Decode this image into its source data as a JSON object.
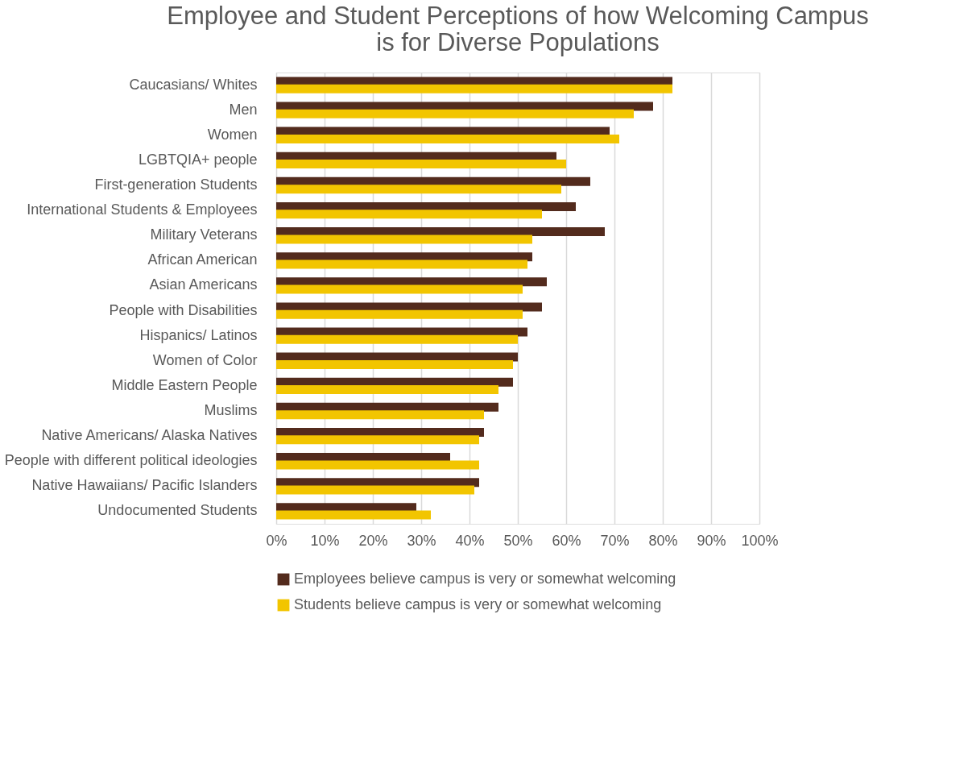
{
  "chart_data": {
    "type": "bar",
    "orientation": "horizontal",
    "title": [
      "Employee and Student Perceptions of how Welcoming Campus",
      "is for Diverse Populations"
    ],
    "categories": [
      "Caucasians/ Whites",
      "Men",
      "Women",
      "LGBTQIA+ people",
      "First-generation Students",
      "International Students & Employees",
      "Military Veterans",
      "African American",
      "Asian Americans",
      "People with Disabilities",
      "Hispanics/ Latinos",
      "Women of Color",
      "Middle Eastern People",
      "Muslims",
      "Native Americans/ Alaska Natives",
      "People with different political ideologies",
      "Native Hawaiians/ Pacific Islanders",
      "Undocumented Students"
    ],
    "series": [
      {
        "name": "Employees believe campus is very or somewhat welcoming",
        "color": "#532b1d",
        "values": [
          82,
          78,
          69,
          58,
          65,
          62,
          68,
          53,
          56,
          55,
          52,
          50,
          49,
          46,
          43,
          36,
          42,
          29
        ]
      },
      {
        "name": "Students believe campus is very or somewhat welcoming",
        "color": "#f2c500",
        "values": [
          82,
          74,
          71,
          60,
          59,
          55,
          53,
          52,
          51,
          51,
          50,
          49,
          46,
          43,
          42,
          42,
          41,
          32
        ]
      }
    ],
    "xlim": [
      0,
      100
    ],
    "xticks": [
      {
        "value": 0,
        "label": "0%"
      },
      {
        "value": 10,
        "label": "10%"
      },
      {
        "value": 20,
        "label": "20%"
      },
      {
        "value": 30,
        "label": "30%"
      },
      {
        "value": 40,
        "label": "40%"
      },
      {
        "value": 50,
        "label": "50%"
      },
      {
        "value": 60,
        "label": "60%"
      },
      {
        "value": 70,
        "label": "70%"
      },
      {
        "value": 80,
        "label": "80%"
      },
      {
        "value": 90,
        "label": "90%"
      },
      {
        "value": 100,
        "label": "100%"
      }
    ],
    "grid": "x",
    "legend": "bottom"
  }
}
